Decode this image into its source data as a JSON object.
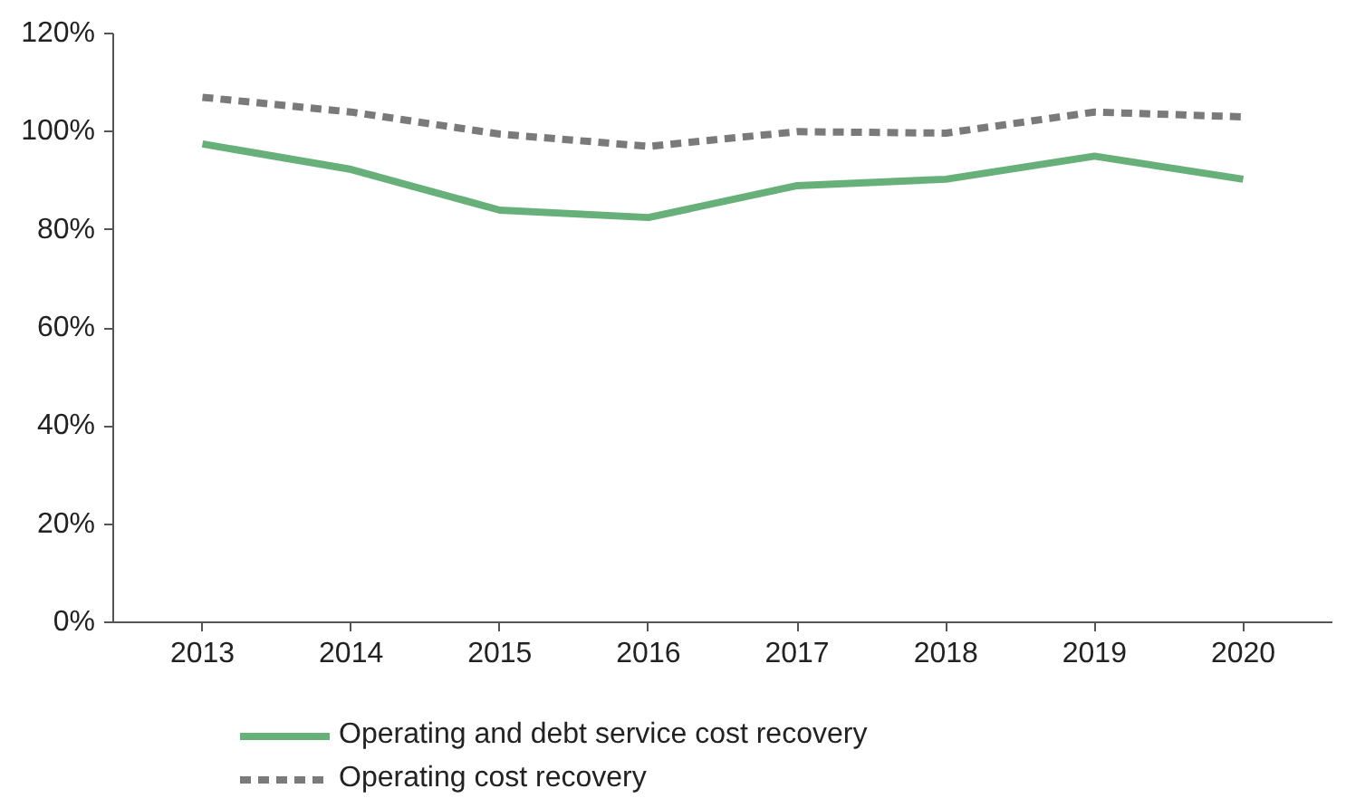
{
  "chart_data": {
    "type": "line",
    "categories": [
      "2013",
      "2014",
      "2015",
      "2016",
      "2017",
      "2018",
      "2019",
      "2020"
    ],
    "series": [
      {
        "name": "Operating and debt service cost recovery",
        "color": "#67b07a",
        "line_style": "solid",
        "values": [
          97.5,
          92.3,
          84,
          82.5,
          89,
          90.3,
          95,
          90.3
        ]
      },
      {
        "name": "Operating cost recovery",
        "color": "#7a7a7a",
        "line_style": "dashed",
        "values": [
          107,
          104,
          99.5,
          97,
          100,
          99.7,
          104,
          103
        ]
      }
    ],
    "ylim": [
      0,
      120
    ],
    "yticks": [
      {
        "value": 0,
        "label": "0%"
      },
      {
        "value": 20,
        "label": "20%"
      },
      {
        "value": 40,
        "label": "40%"
      },
      {
        "value": 60,
        "label": "60%"
      },
      {
        "value": 80,
        "label": "80%"
      },
      {
        "value": 100,
        "label": "100%"
      },
      {
        "value": 120,
        "label": "120%"
      }
    ],
    "grid": false,
    "legend": "bottom",
    "marker": "none"
  }
}
